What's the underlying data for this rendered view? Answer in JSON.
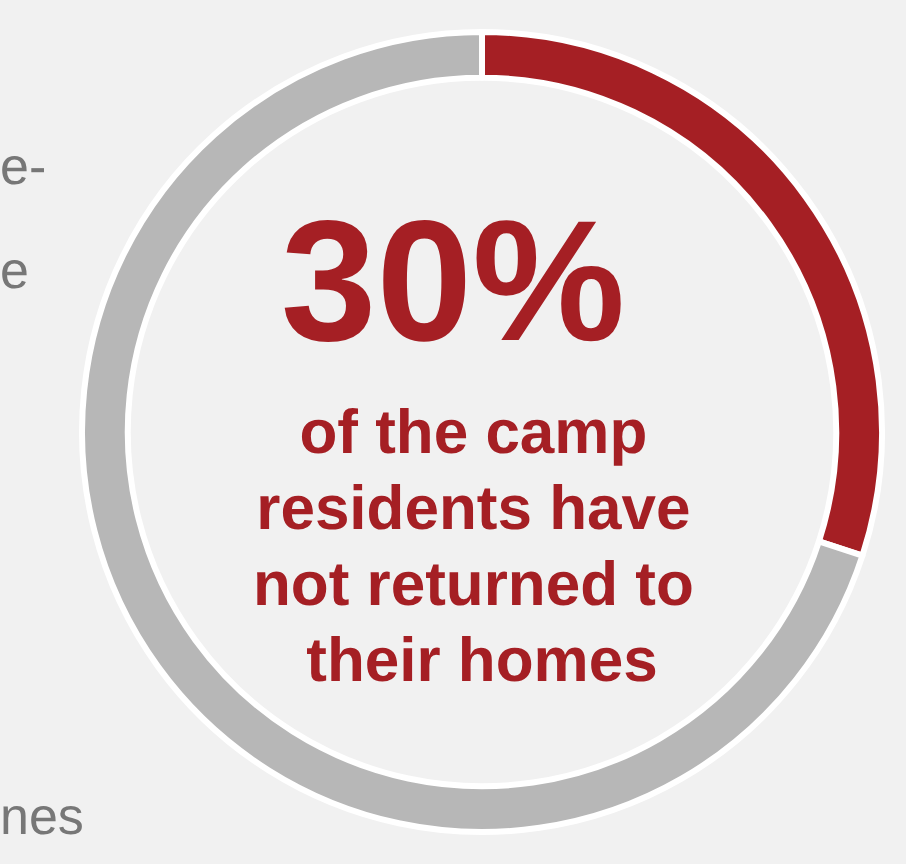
{
  "chart_data": {
    "type": "donut",
    "categories": [
      null,
      null
    ],
    "values": [
      30,
      70
    ],
    "colors": [
      "#a51f24",
      "#b7b7b7"
    ],
    "value_labels": [
      "30%",
      null
    ],
    "annotations": [
      "of the camp residents have not returned to their homes",
      "e-",
      "e",
      "nes"
    ]
  }
}
